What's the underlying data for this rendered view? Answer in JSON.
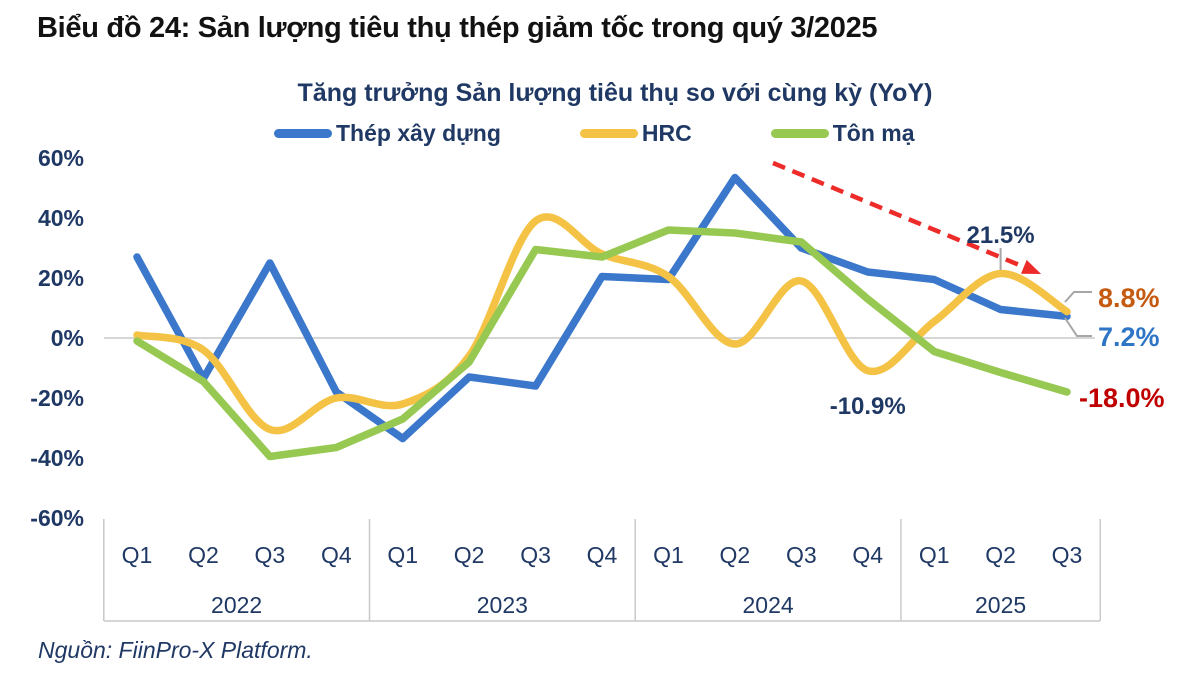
{
  "title": "Biểu đồ 24: Sản lượng tiêu thụ thép giảm tốc trong quý 3/2025",
  "source_note": "Nguồn: FiinPro-X Platform.",
  "colors": {
    "title_text": "#121212",
    "navy_text": "#1F3864",
    "zero_gridline": "#D6D6D6",
    "axis_line": "#C9C9C9",
    "leader_gray": "#A6A6A6",
    "arrow_red": "#ED2C2A",
    "end_label_orange": "#C55A11",
    "end_label_blue": "#2E75C6",
    "end_label_red": "#C00000"
  },
  "chart_data": {
    "type": "line",
    "title": "Tăng trưởng Sản lượng tiêu thụ so với cùng kỳ (YoY)",
    "xlabel": "",
    "ylabel": "",
    "x": {
      "years": [
        {
          "label": "2022",
          "quarters": [
            "Q1",
            "Q2",
            "Q3",
            "Q4"
          ]
        },
        {
          "label": "2023",
          "quarters": [
            "Q1",
            "Q2",
            "Q3",
            "Q4"
          ]
        },
        {
          "label": "2024",
          "quarters": [
            "Q1",
            "Q2",
            "Q3",
            "Q4"
          ]
        },
        {
          "label": "2025",
          "quarters": [
            "Q1",
            "Q2",
            "Q3"
          ]
        }
      ]
    },
    "y_axis": {
      "ylim": [
        -60,
        60
      ],
      "unit": "%",
      "ticks": [
        {
          "label": "60%",
          "value": 60
        },
        {
          "label": "40%",
          "value": 40
        },
        {
          "label": "20%",
          "value": 20
        },
        {
          "label": "0%",
          "value": 0
        },
        {
          "label": "-20%",
          "value": -20
        },
        {
          "label": "-40%",
          "value": -40
        },
        {
          "label": "-60%",
          "value": -60
        }
      ],
      "grid": "zero-line-only"
    },
    "legend_position": "top",
    "series": [
      {
        "name": "Thép xây dựng",
        "color": "#3B77CB",
        "style": "straight",
        "values": [
          27,
          -13.5,
          25,
          -18,
          -33.5,
          -13,
          -16,
          20.5,
          19.5,
          53.5,
          30,
          22,
          19.5,
          9.5,
          7.2
        ]
      },
      {
        "name": "HRC",
        "color": "#F4C345",
        "style": "smooth",
        "values": [
          1,
          -4,
          -30.5,
          -20,
          -22,
          -6,
          39,
          28,
          20.5,
          -2,
          19,
          -10.9,
          5.5,
          21.5,
          8.8
        ]
      },
      {
        "name": "Tôn mạ",
        "color": "#97C952",
        "style": "straight",
        "values": [
          -1,
          -14.5,
          -39.5,
          -36.5,
          -27,
          -8,
          29.5,
          27,
          36,
          35,
          32,
          13,
          -4.5,
          -11.5,
          -18
        ]
      }
    ],
    "annotations": {
      "peak_label": {
        "text": "21.5%",
        "series": "HRC",
        "point_index": 13
      },
      "trough_label": {
        "text": "-10.9%",
        "series": "HRC",
        "point_index": 11
      },
      "end_labels": [
        {
          "text": "8.8%",
          "series": "HRC",
          "color": "#C55A11"
        },
        {
          "text": "7.2%",
          "series": "Thép xây dựng",
          "color": "#2E75C6"
        },
        {
          "text": "-18.0%",
          "series": "Tôn mạ",
          "color": "#C00000"
        }
      ],
      "trend_arrow": {
        "description": "dashed red arrow sloping down toward HRC Q2 2025 peak",
        "color": "#ED2C2A"
      }
    }
  }
}
